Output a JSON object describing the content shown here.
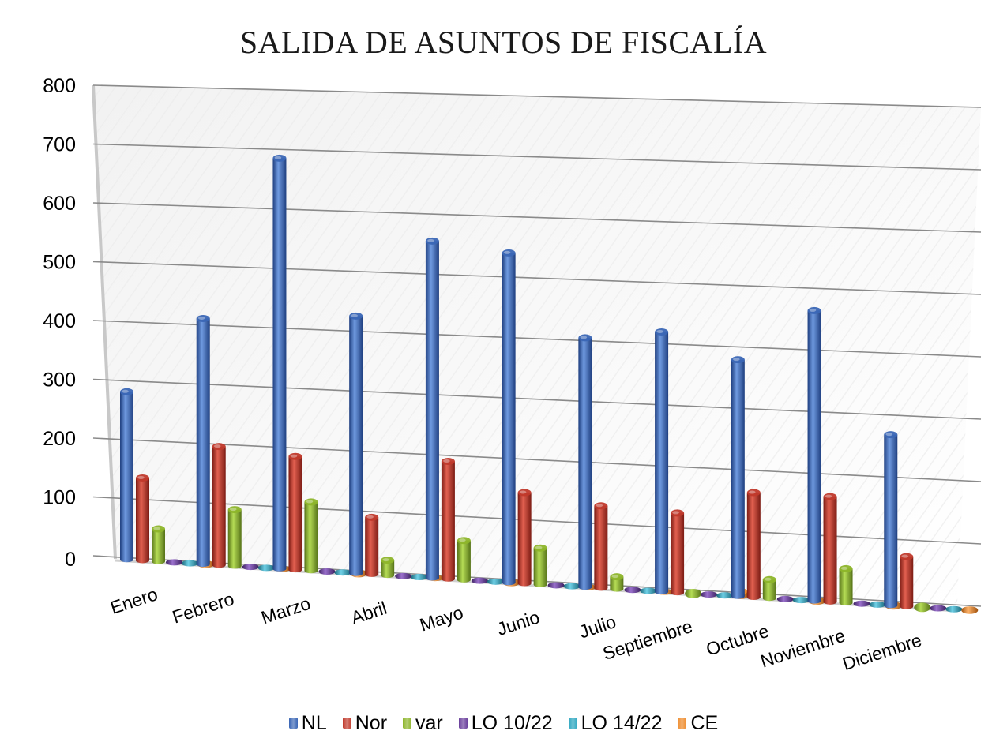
{
  "chart_data": {
    "type": "bar",
    "title": "SALIDA DE ASUNTOS DE FISCALÍA",
    "xlabel": "",
    "ylabel": "",
    "ylim": [
      0,
      800
    ],
    "yticks": [
      "0",
      "100",
      "200",
      "300",
      "400",
      "500",
      "600",
      "700",
      "800"
    ],
    "categories": [
      "Enero",
      "Febrero",
      "Marzo",
      "Abril",
      "Mayo",
      "Junio",
      "Julio",
      "Septiembre",
      "Octubre",
      "Noviembre",
      "Diciembre"
    ],
    "series": [
      {
        "name": "NL",
        "color": "#3a66b5",
        "values": [
          285,
          415,
          690,
          430,
          560,
          545,
          410,
          425,
          385,
          470,
          275
        ]
      },
      {
        "name": "Nor",
        "color": "#c0392b",
        "values": [
          140,
          200,
          190,
          95,
          195,
          150,
          135,
          130,
          170,
          170,
          80
        ]
      },
      {
        "name": "var",
        "color": "#8db52a",
        "values": [
          55,
          95,
          115,
          25,
          65,
          60,
          20,
          5,
          30,
          55,
          5
        ]
      },
      {
        "name": "LO 10/22",
        "color": "#6a3f9c",
        "values": [
          0,
          0,
          0,
          0,
          0,
          0,
          0,
          0,
          0,
          0,
          0
        ]
      },
      {
        "name": "LO 14/22",
        "color": "#2aa5bf",
        "values": [
          0,
          0,
          0,
          0,
          0,
          0,
          0,
          0,
          0,
          0,
          0
        ]
      },
      {
        "name": "CE",
        "color": "#ee8a2a",
        "values": [
          2,
          0,
          3,
          0,
          2,
          0,
          0,
          8,
          2,
          3,
          2
        ]
      }
    ],
    "grid": true,
    "legend_position": "bottom"
  }
}
